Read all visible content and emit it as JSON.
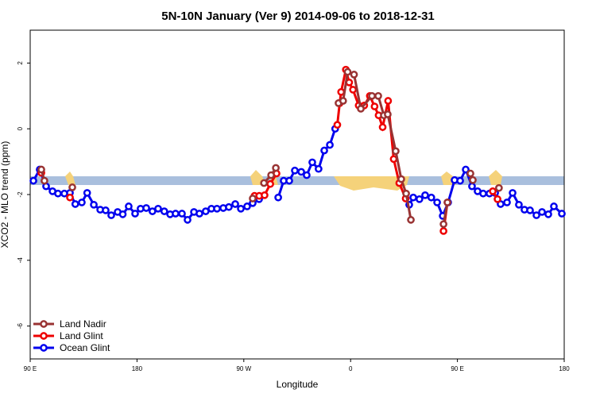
{
  "chart_data": {
    "type": "line",
    "title": "5N-10N January (Ver 9)   2014-09-06 to 2018-12-31",
    "xlabel": "Longitude",
    "ylabel": "XCO2 - MLO trend (ppm)",
    "xlim": [
      90,
      540
    ],
    "xticks": [
      {
        "value": 90,
        "label": "90 E"
      },
      180,
      {
        "value": 270,
        "label": "90 W"
      },
      {
        "value": 360,
        "label": "0"
      },
      {
        "value": 450,
        "label": "90 E"
      },
      {
        "value": 540,
        "label": "180"
      }
    ],
    "ylim": [
      -7,
      3
    ],
    "yticks": [
      -6,
      -4,
      -2,
      0,
      2
    ],
    "legend": "bottom-left",
    "series": [
      {
        "name": "Land Nadir",
        "color": "#993333",
        "x": [
          99.4,
          102,
          null,
          125.5,
          null,
          277.5,
          null,
          287,
          293,
          297,
          null,
          349.8,
          353.7,
          357.5,
          362.9,
          368.6,
          378,
          383.3,
          388,
          391.3,
          398,
          402.7,
          406.8,
          410.8,
          null,
          438.3,
          441.6,
          null,
          461,
          463,
          null,
          485
        ],
        "values": [
          -1.24,
          -1.58,
          null,
          -1.78,
          null,
          -2.12,
          null,
          -1.65,
          -1.41,
          -1.19,
          null,
          0.78,
          0.85,
          1.73,
          1.65,
          0.61,
          1.0,
          1.0,
          0.41,
          0.44,
          -0.68,
          -1.53,
          -1.97,
          -2.77,
          null,
          -2.9,
          -2.24,
          null,
          -1.36,
          -1.56,
          null,
          -1.8
        ]
      },
      {
        "name": "Land Glint",
        "color": "#ee0000",
        "x": [
          99.4,
          null,
          123.5,
          null,
          279,
          283,
          287.5,
          292.3,
          297.6,
          null,
          348.8,
          350.8,
          352,
          356,
          358.8,
          362,
          366.8,
          371.5,
          376.2,
          380.2,
          383.6,
          387,
          391.6,
          396.3,
          401,
          406.4,
          null,
          438.3,
          441.6,
          null,
          479.8,
          483.8
        ],
        "values": [
          -1.34,
          null,
          -2.09,
          null,
          -2.04,
          -2.04,
          -2.02,
          -1.68,
          -1.36,
          null,
          0.12,
          0.78,
          1.12,
          1.8,
          1.41,
          1.19,
          0.71,
          0.71,
          1.0,
          0.68,
          0.41,
          0.05,
          0.85,
          -0.92,
          -1.65,
          -2.12,
          null,
          -3.11,
          -2.24,
          null,
          -1.9,
          -2.14
        ]
      },
      {
        "name": "Ocean Glint",
        "color": "#0000ee",
        "x": [
          92.7,
          98,
          103.4,
          108.8,
          113.4,
          118.8,
          123.5,
          128,
          133.5,
          138,
          143.6,
          149,
          153.6,
          158.3,
          163.7,
          168,
          173,
          178.4,
          183,
          187.8,
          193,
          197.8,
          203,
          207.9,
          212.5,
          217.9,
          222.6,
          228,
          232.6,
          237.9,
          242.7,
          247.4,
          252.7,
          257.4,
          262.8,
          267.5,
          272.8,
          277.5,
          282.9,
          null,
          299,
          303.6,
          308.3,
          313,
          318.4,
          323,
          327.7,
          333,
          337.8,
          342.5,
          347,
          null,
          409.4,
          412.8,
          418,
          422.8,
          428,
          432.9,
          437.6,
          442.2,
          447.6,
          452.3,
          457,
          462.3,
          467,
          471.7,
          477,
          481.8,
          486.4,
          491.8,
          496.5,
          501.8,
          506.5,
          511.2,
          516.6,
          521.3,
          526.6,
          531.3,
          538
        ],
        "values": [
          -1.58,
          -1.24,
          -1.75,
          -1.9,
          -1.97,
          -1.97,
          -1.95,
          -2.29,
          -2.24,
          -1.95,
          -2.31,
          -2.46,
          -2.48,
          -2.63,
          -2.53,
          -2.6,
          -2.36,
          -2.58,
          -2.43,
          -2.41,
          -2.51,
          -2.43,
          -2.51,
          -2.6,
          -2.58,
          -2.58,
          -2.77,
          -2.53,
          -2.58,
          -2.51,
          -2.43,
          -2.43,
          -2.41,
          -2.38,
          -2.29,
          -2.43,
          -2.36,
          -2.26,
          -2.14,
          null,
          -2.09,
          -1.58,
          -1.58,
          -1.27,
          -1.31,
          -1.41,
          -1.02,
          -1.22,
          -0.66,
          -0.49,
          0,
          null,
          -2.31,
          -2.09,
          -2.14,
          -2.02,
          -2.09,
          -2.24,
          -2.65,
          -2.24,
          -1.56,
          -1.58,
          -1.24,
          -1.75,
          -1.9,
          -1.97,
          -1.97,
          -1.95,
          -2.29,
          -2.24,
          -1.95,
          -2.31,
          -2.46,
          -2.48,
          -2.63,
          -2.53,
          -2.6,
          -2.36,
          -2.58
        ]
      }
    ]
  }
}
